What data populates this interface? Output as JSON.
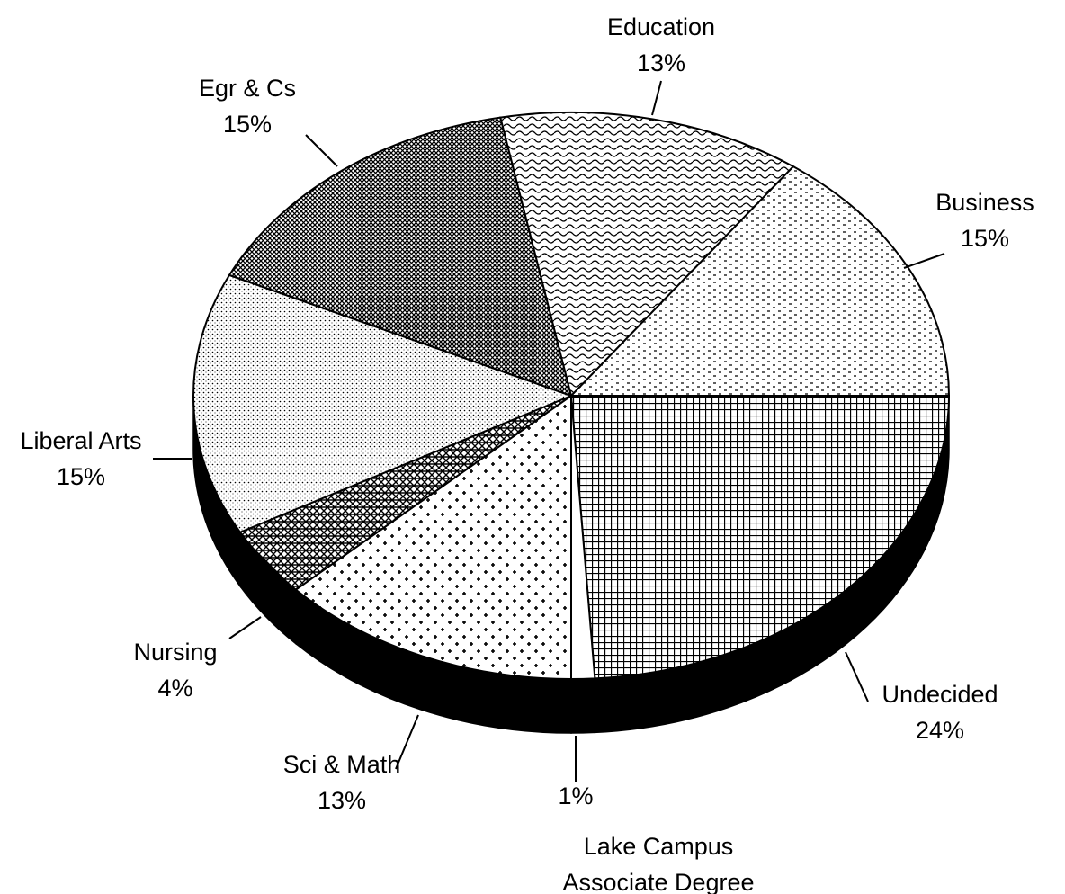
{
  "chart_data": {
    "type": "pie",
    "style": "3d",
    "categories": [
      "Undecided",
      "Lake Campus Associate Degree",
      "Sci & Math",
      "Nursing",
      "Liberal Arts",
      "Egr & Cs",
      "Education",
      "Business"
    ],
    "values": [
      24,
      1,
      13,
      4,
      15,
      15,
      13,
      15
    ],
    "value_labels": [
      "24%",
      "1%",
      "13%",
      "4%",
      "15%",
      "15%",
      "13%",
      "15%"
    ]
  }
}
